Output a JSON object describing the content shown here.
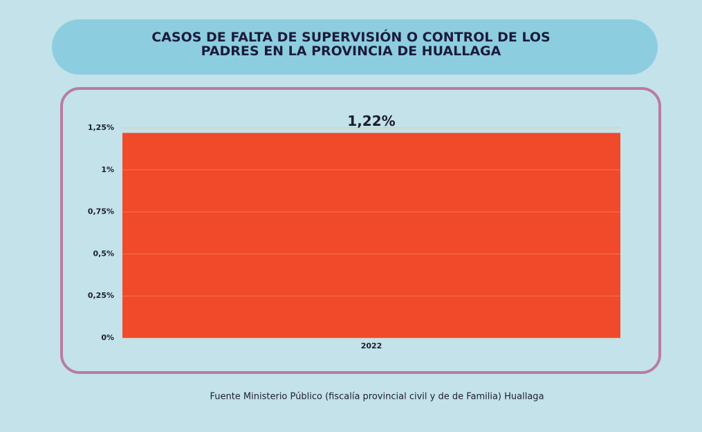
{
  "chart_data": {
    "type": "bar",
    "title": "CASOS DE FALTA DE SUPERVISIÓN O CONTROL DE LOS PADRES EN LA PROVINCIA DE HUALLAGA",
    "categories": [
      "2022"
    ],
    "values": [
      1.22
    ],
    "value_labels": [
      "1,22%"
    ],
    "color": "#f04a2a",
    "ylim": [
      0,
      1.25
    ],
    "yticks": [
      {
        "value": 0,
        "label": "0%"
      },
      {
        "value": 0.25,
        "label": "0,25%"
      },
      {
        "value": 0.5,
        "label": "0,5%"
      },
      {
        "value": 0.75,
        "label": "0,75%"
      },
      {
        "value": 1,
        "label": "1%"
      },
      {
        "value": 1.25,
        "label": "1,25%"
      }
    ],
    "grid": true,
    "source": "Fuente Ministerio Público (fiscalía provincial civil y de de Familia) Huallaga"
  }
}
